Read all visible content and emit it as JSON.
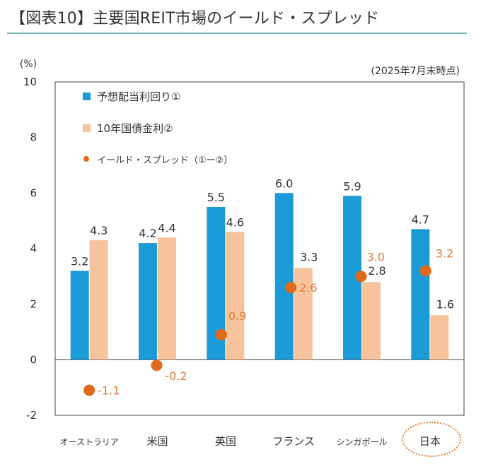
{
  "title": "【図表10】主要国REIT市場のイールド・スプレッド",
  "unit_label": "(%)",
  "as_of": "(2025年7月末時点)",
  "colors": {
    "dividend": "#1a9ad6",
    "bond": "#f7c39c",
    "spread": "#e06a1a",
    "spread_text": "#e07d3c",
    "highlight": "#e07d3c"
  },
  "chart_data": {
    "type": "bar",
    "ylim": [
      -2,
      10
    ],
    "yticks": [
      -2,
      0,
      2,
      4,
      6,
      8,
      10
    ],
    "grid": false,
    "legend_position": "top-left",
    "categories": [
      "オーストラリア",
      "米国",
      "英国",
      "フランス",
      "シンガポール",
      "日本"
    ],
    "highlight_category": "日本",
    "series": [
      {
        "name": "予想配当利回り①",
        "kind": "bar",
        "values": [
          3.2,
          4.2,
          5.5,
          6.0,
          5.9,
          4.7
        ],
        "labels": [
          "3.2",
          "4.2",
          "5.5",
          "6.0",
          "5.9",
          "4.7"
        ]
      },
      {
        "name": "10年国債金利②",
        "kind": "bar",
        "values": [
          4.3,
          4.4,
          4.6,
          3.3,
          2.8,
          1.6
        ],
        "labels": [
          "4.3",
          "4.4",
          "4.6",
          "3.3",
          "2.8",
          "1.6"
        ]
      },
      {
        "name": "イールド・スプレッド（①ー②）",
        "kind": "point",
        "values": [
          -1.1,
          -0.2,
          0.9,
          2.6,
          3.0,
          3.2
        ],
        "labels": [
          "-1.1",
          "-0.2",
          "0.9",
          "2.6",
          "3.0",
          "3.2"
        ]
      }
    ]
  }
}
